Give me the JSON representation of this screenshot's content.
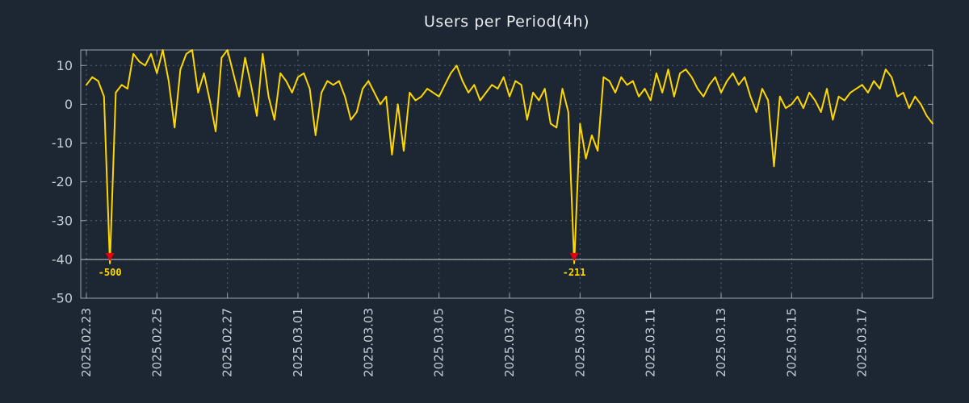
{
  "chart_data": {
    "type": "line",
    "title": "Users per Period(4h)",
    "period": "4h",
    "ylim": [
      -50,
      14
    ],
    "yticks": [
      10,
      0,
      -10,
      -20,
      -30,
      -40,
      -50
    ],
    "ytick_labels": [
      "10",
      "0",
      "-10",
      "-20",
      "-30",
      "-40",
      "-50"
    ],
    "xtick_labels": [
      "2025.02.23",
      "2025.02.25",
      "2025.02.27",
      "2025.03.01",
      "2025.03.03",
      "2025.03.05",
      "2025.03.07",
      "2025.03.09",
      "2025.03.11",
      "2025.03.13",
      "2025.03.15",
      "2025.03.17"
    ],
    "xtick_indices": [
      0,
      12,
      24,
      36,
      48,
      60,
      72,
      84,
      96,
      108,
      120,
      132
    ],
    "grid": true,
    "legend": "none",
    "clip_level": -41,
    "baseline_y": -40,
    "values": [
      5,
      7,
      6,
      2,
      -500,
      3,
      5,
      4,
      13,
      11,
      10,
      13,
      8,
      14,
      6,
      -6,
      9,
      13,
      14,
      3,
      8,
      1,
      -7,
      12,
      14,
      8,
      2,
      12,
      5,
      -3,
      13,
      2,
      -4,
      8,
      6,
      3,
      7,
      8,
      4,
      -8,
      3,
      6,
      5,
      6,
      2,
      -4,
      -2,
      4,
      6,
      3,
      0,
      2,
      -13,
      0,
      -12,
      3,
      1,
      2,
      4,
      3,
      2,
      5,
      8,
      10,
      6,
      3,
      5,
      1,
      3,
      5,
      4,
      7,
      2,
      6,
      5,
      -4,
      3,
      1,
      4,
      -5,
      -6,
      4,
      -2,
      -211,
      -5,
      -14,
      -8,
      -12,
      7,
      6,
      3,
      7,
      5,
      6,
      2,
      4,
      1,
      8,
      3,
      9,
      2,
      8,
      9,
      7,
      4,
      2,
      5,
      7,
      3,
      6,
      8,
      5,
      7,
      2,
      -2,
      4,
      1,
      -16,
      2,
      -1,
      0,
      2,
      -1,
      3,
      1,
      -2,
      4,
      -4,
      2,
      1,
      3,
      4,
      5,
      3,
      6,
      4,
      9,
      7,
      2,
      3,
      -1,
      2,
      0,
      -3,
      -5
    ],
    "annotations": [
      {
        "index": 4,
        "label": "-500",
        "value": -500
      },
      {
        "index": 83,
        "label": "-211",
        "value": -211
      }
    ],
    "colors": {
      "background": "#1c2733",
      "line": "#ffd700",
      "grid": "#8894a0",
      "border": "#9aa5b1",
      "baseline": "#c7ccd2",
      "annotation_arrow": "#e0000f",
      "annotation_label": "#ffd700",
      "tick_label": "#c5ccd6",
      "title": "#e7eaee"
    }
  }
}
